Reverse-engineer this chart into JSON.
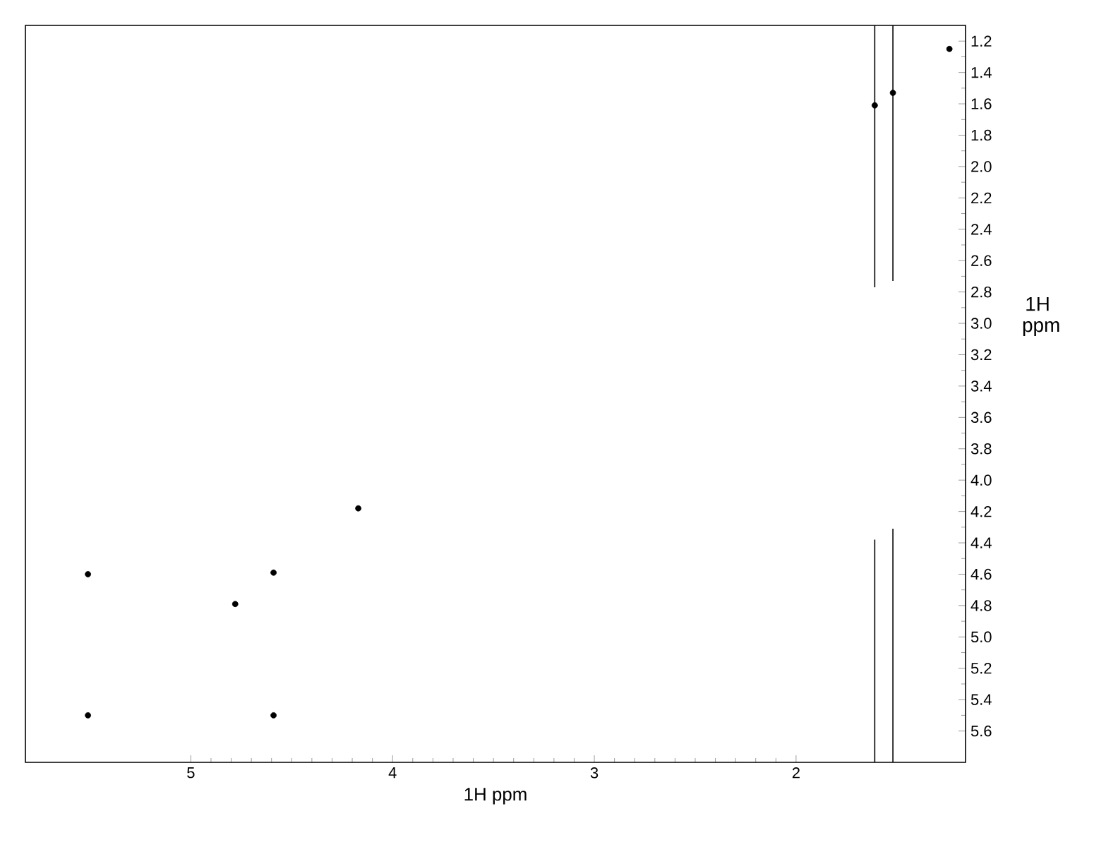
{
  "chart_data": {
    "type": "scatter",
    "xlabel": "1H ppm",
    "ylabel": "1H ppm",
    "xlim": [
      5.82,
      1.16
    ],
    "ylim": [
      5.8,
      1.1
    ],
    "xticks": [
      2,
      3,
      4,
      5
    ],
    "yticks": [
      1.2,
      1.4,
      1.6,
      1.8,
      {
        "value": 2.0,
        "label": "2.0"
      },
      2.2,
      2.4,
      2.6,
      2.8,
      {
        "value": 3.0,
        "label": "3.0"
      },
      3.2,
      3.4,
      3.6,
      3.8,
      {
        "value": 4.0,
        "label": "4.0"
      },
      4.2,
      4.4,
      4.6,
      4.8,
      {
        "value": 5.0,
        "label": "5.0"
      },
      5.2,
      5.4,
      5.6
    ],
    "grid": false,
    "series": [
      {
        "marker": "circle",
        "color": "#000000",
        "x": [
          5.51,
          5.51,
          4.59,
          4.59,
          4.78,
          4.17,
          1.24,
          1.61,
          1.52
        ],
        "values": [
          4.6,
          5.5,
          4.59,
          5.5,
          4.79,
          4.18,
          1.25,
          1.61,
          1.53
        ]
      },
      {
        "type": "line",
        "color": "#000000",
        "marker": "none",
        "x": [
          1.61,
          1.61
        ],
        "values": [
          1.1,
          2.77
        ]
      },
      {
        "type": "line",
        "color": "#000000",
        "marker": "none",
        "x": [
          1.52,
          1.52
        ],
        "values": [
          1.1,
          2.73
        ]
      },
      {
        "type": "line",
        "color": "#000000",
        "marker": "none",
        "x": [
          1.61,
          1.61
        ],
        "values": [
          4.38,
          5.8
        ]
      },
      {
        "type": "line",
        "color": "#000000",
        "marker": "none",
        "x": [
          1.52,
          1.52
        ],
        "values": [
          4.31,
          5.8
        ]
      }
    ]
  }
}
